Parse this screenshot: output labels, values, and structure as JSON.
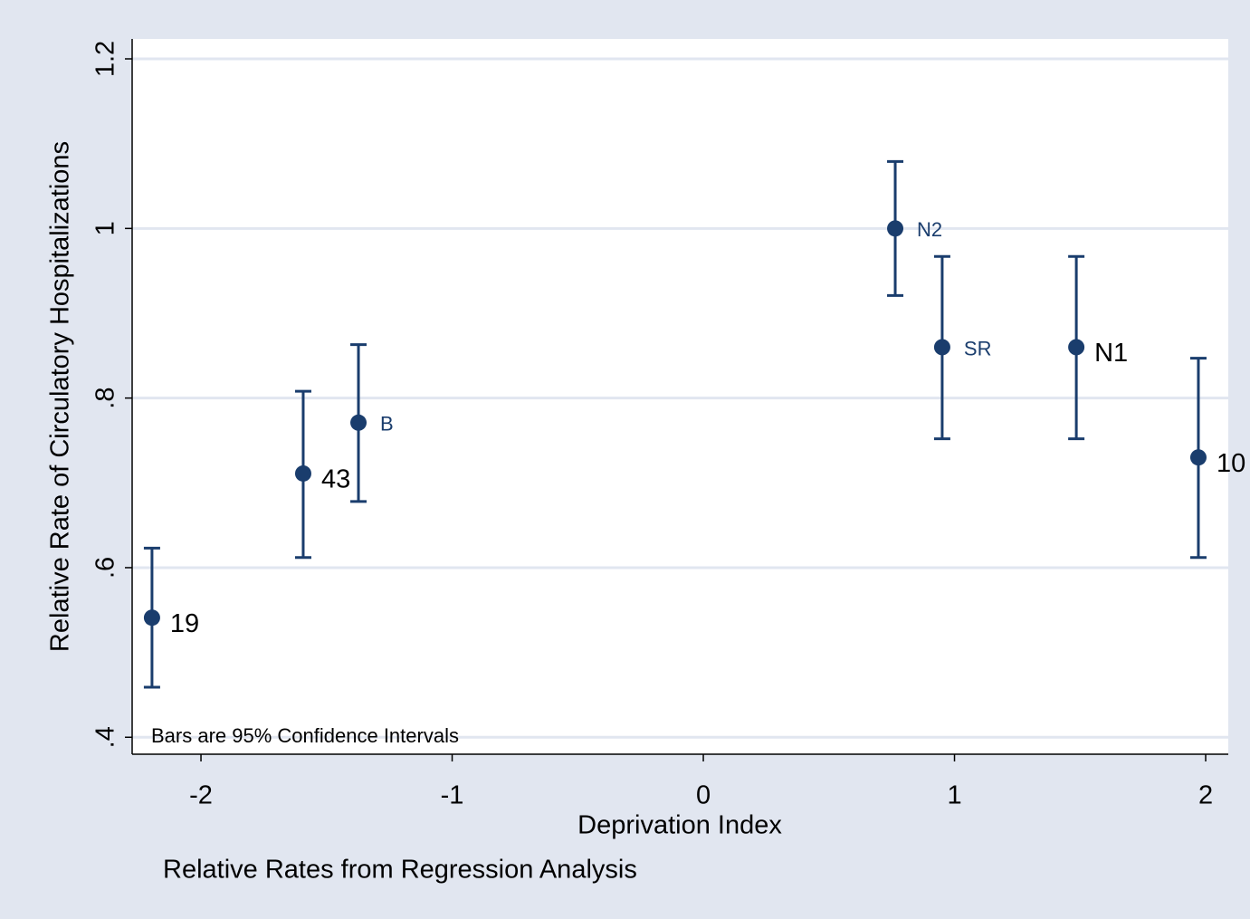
{
  "chart_data": {
    "type": "scatter",
    "xlabel": "Deprivation Index",
    "ylabel": "Relative Rate of Circulatory Hospitalizations",
    "note": "Bars are 95% Confidence Intervals",
    "caption": "Relative Rates from Regression Analysis",
    "xlim": [
      -2.274,
      2.09
    ],
    "ylim": [
      0.38,
      1.2235
    ],
    "xticks": [
      -2,
      -1,
      0,
      1,
      2
    ],
    "yticks": [
      {
        "value": 0.4,
        "label": ".4"
      },
      {
        "value": 0.6,
        "label": ".6"
      },
      {
        "value": 0.8,
        "label": ".8"
      },
      1,
      1.2
    ],
    "grid": true,
    "series": [
      {
        "color": "#1a3d6d",
        "x": [
          -2.195,
          -1.593,
          -1.373,
          0.764,
          0.951,
          1.485,
          1.971
        ],
        "values": [
          0.541,
          0.711,
          0.771,
          1.0,
          0.86,
          0.86,
          0.73
        ],
        "lower": [
          0.459,
          0.612,
          0.678,
          0.921,
          0.752,
          0.752,
          0.612
        ],
        "upper": [
          0.623,
          0.808,
          0.863,
          1.079,
          0.967,
          0.967,
          0.847
        ],
        "point_labels": [
          "19",
          "43",
          "B",
          "N2",
          "SR",
          "N1",
          "10"
        ],
        "label_colors": [
          "#000000",
          "#000000",
          "#1a3d6d",
          "#1a3d6d",
          "#1a3d6d",
          "#000000",
          "#000000"
        ]
      }
    ]
  }
}
